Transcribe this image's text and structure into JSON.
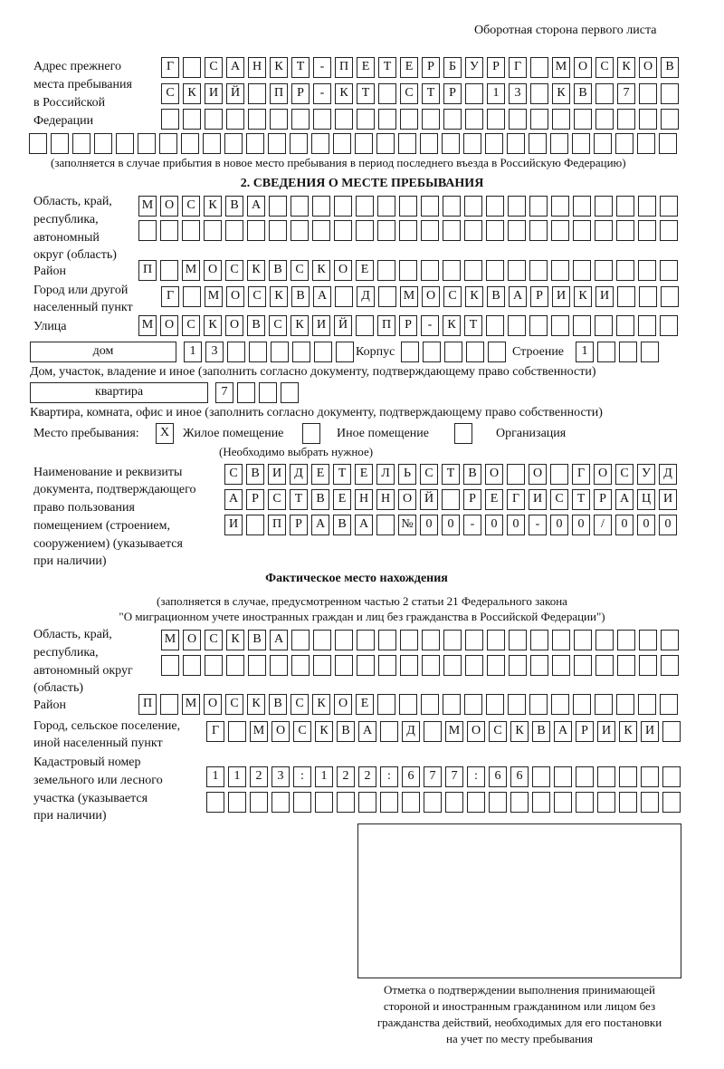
{
  "header": "Оборотная сторона первого листа",
  "prev": {
    "label": [
      "Адрес прежнего",
      "места пребывания",
      "в Российской",
      "Федерации"
    ],
    "rows": [
      [
        "Г",
        "",
        "С",
        "А",
        "Н",
        "К",
        "Т",
        "-",
        "П",
        "Е",
        "Т",
        "Е",
        "Р",
        "Б",
        "У",
        "Р",
        "Г",
        "",
        "М",
        "О",
        "С",
        "К",
        "О",
        "В"
      ],
      [
        "С",
        "К",
        "И",
        "Й",
        "",
        "П",
        "Р",
        "-",
        "К",
        "Т",
        "",
        "С",
        "Т",
        "Р",
        "",
        "1",
        "3",
        "",
        "К",
        "В",
        "",
        "7",
        "",
        ""
      ],
      [],
      []
    ],
    "note": "(заполняется в случае прибытия в новое место пребывания в период последнего въезда в Российскую Федерацию)"
  },
  "s2": {
    "title": "2. СВЕДЕНИЯ О МЕСТЕ ПРЕБЫВАНИЯ",
    "oblast_label": [
      "Область, край,",
      "республика,",
      "автономный",
      "округ (область)"
    ],
    "oblast": [
      [
        "М",
        "О",
        "С",
        "К",
        "В",
        "А"
      ],
      []
    ],
    "rayon_label": "Район",
    "rayon": [
      "П",
      "",
      "М",
      "О",
      "С",
      "К",
      "В",
      "С",
      "К",
      "О",
      "Е"
    ],
    "gorod_label": [
      "Город или другой",
      "населенный пункт"
    ],
    "gorod": [
      "Г",
      "",
      "М",
      "О",
      "С",
      "К",
      "В",
      "А",
      "",
      "Д",
      "",
      "М",
      "О",
      "С",
      "К",
      "В",
      "А",
      "Р",
      "И",
      "К",
      "И"
    ],
    "ulica_label": "Улица",
    "ulica": [
      "М",
      "О",
      "С",
      "К",
      "О",
      "В",
      "С",
      "К",
      "И",
      "Й",
      "",
      "П",
      "Р",
      "-",
      "К",
      "Т"
    ],
    "dom_type": "дом",
    "dom": [
      "1",
      "3"
    ],
    "korpus_label": "Корпус",
    "korpus": [],
    "stroenie_label": "Строение",
    "stroenie": [
      "1"
    ],
    "dom_note": "Дом, участок, владение и иное (заполнить согласно документу, подтверждающему право собственности)",
    "kv_type": "квартира",
    "kv": [
      "7"
    ],
    "kv_note": "Квартира, комната, офис и иное (заполнить согласно документу, подтверждающему право собственности)",
    "mesto_label": "Место пребывания:",
    "opt1_mark": "X",
    "opt1": "Жилое помещение",
    "opt2_mark": "",
    "opt2": "Иное помещение",
    "opt3_mark": "",
    "opt3": "Организация",
    "mesto_note": "(Необходимо выбрать нужное)",
    "doc_label": [
      "Наименование и реквизиты",
      "документа, подтверждающего",
      "право пользования",
      "помещением (строением,",
      "сооружением) (указывается",
      "при наличии)"
    ],
    "doc": [
      [
        "С",
        "В",
        "И",
        "Д",
        "Е",
        "Т",
        "Е",
        "Л",
        "Ь",
        "С",
        "Т",
        "В",
        "О",
        "",
        "О",
        "",
        "Г",
        "О",
        "С",
        "У",
        "Д"
      ],
      [
        "А",
        "Р",
        "С",
        "Т",
        "В",
        "Е",
        "Н",
        "Н",
        "О",
        "Й",
        "",
        "Р",
        "Е",
        "Г",
        "И",
        "С",
        "Т",
        "Р",
        "А",
        "Ц",
        "И"
      ],
      [
        "И",
        "",
        "П",
        "Р",
        "А",
        "В",
        "А",
        "",
        "№",
        "0",
        "0",
        "-",
        "0",
        "0",
        "-",
        "0",
        "0",
        "/",
        "0",
        "0",
        "0"
      ]
    ]
  },
  "fact": {
    "title": "Фактическое место нахождения",
    "note1": "(заполняется в случае, предусмотренном частью 2 статьи 21 Федерального закона",
    "note2": "\"О миграционном учете иностранных граждан и лиц без гражданства в Российской Федерации\")",
    "oblast_label": [
      "Область, край,",
      "республика,",
      "автономный округ",
      "(область)"
    ],
    "oblast": [
      [
        "М",
        "О",
        "С",
        "К",
        "В",
        "А"
      ],
      []
    ],
    "rayon_label": "Район",
    "rayon": [
      "П",
      "",
      "М",
      "О",
      "С",
      "К",
      "В",
      "С",
      "К",
      "О",
      "Е"
    ],
    "gorod_label": [
      "Город, сельское поселение,",
      "иной населенный пункт"
    ],
    "gorod": [
      "Г",
      "",
      "М",
      "О",
      "С",
      "К",
      "В",
      "А",
      "",
      "Д",
      "",
      "М",
      "О",
      "С",
      "К",
      "В",
      "А",
      "Р",
      "И",
      "К",
      "И"
    ],
    "kad_label": [
      "Кадастровый номер",
      "земельного или лесного",
      "участка (указывается",
      "при наличии)"
    ],
    "kad": [
      [
        "1",
        "1",
        "2",
        "3",
        ":",
        "1",
        "2",
        "2",
        ":",
        "6",
        "7",
        "7",
        ":",
        "6",
        "6"
      ],
      []
    ],
    "stamp_caption": [
      "Отметка о подтверждении выполнения принимающей",
      "стороной и иностранным гражданином или лицом без",
      "гражданства действий, необходимых для его постановки",
      "на учет по месту пребывания"
    ]
  }
}
